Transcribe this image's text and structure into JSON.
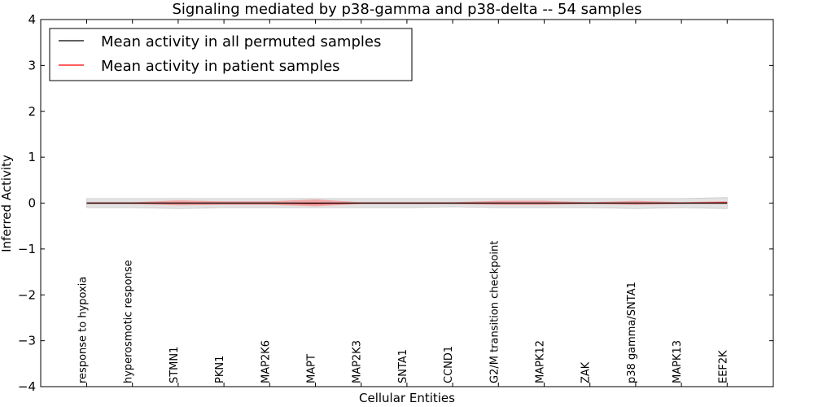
{
  "chart_data": {
    "type": "line",
    "title": "Signaling mediated by p38-gamma and p38-delta -- 54 samples",
    "xlabel": "Cellular Entities",
    "ylabel": "Inferred Activity",
    "ylim": [
      -4,
      4
    ],
    "yticks": [
      -4,
      -3,
      -2,
      -1,
      0,
      1,
      2,
      3,
      4
    ],
    "ytick_labels": [
      "−4",
      "−3",
      "−2",
      "−1",
      "0",
      "1",
      "2",
      "3",
      "4"
    ],
    "categories": [
      "response to hypoxia",
      "hyperosmotic response",
      "STMN1",
      "PKN1",
      "MAP2K6",
      "MAPT",
      "MAP2K3",
      "SNTA1",
      "CCND1",
      "G2/M transition checkpoint",
      "MAPK12",
      "ZAK",
      "p38 gamma/SNTA1",
      "MAPK13",
      "EEF2K"
    ],
    "legend": {
      "placement": "top-left",
      "entries": [
        "Mean activity in all permuted samples",
        "Mean activity in patient samples"
      ]
    },
    "series": [
      {
        "name": "Mean activity in all permuted samples",
        "color": "#000000",
        "values": [
          0.0,
          0.0,
          0.0,
          0.0,
          0.0,
          0.0,
          0.0,
          0.0,
          0.0,
          0.0,
          0.0,
          0.0,
          0.0,
          0.0,
          0.0
        ],
        "band_lower": [
          -0.1,
          -0.1,
          -0.12,
          -0.1,
          -0.1,
          -0.1,
          -0.1,
          -0.1,
          -0.08,
          -0.1,
          -0.1,
          -0.1,
          -0.12,
          -0.1,
          -0.12
        ],
        "band_upper": [
          0.1,
          0.1,
          0.1,
          0.1,
          0.1,
          0.1,
          0.1,
          0.1,
          0.1,
          0.1,
          0.1,
          0.1,
          0.1,
          0.1,
          0.12
        ],
        "band_color": "#d9d9d9"
      },
      {
        "name": "Mean activity in patient samples",
        "color": "#ff0000",
        "values": [
          0.0,
          0.0,
          0.0,
          0.0,
          0.0,
          -0.01,
          0.0,
          0.0,
          0.0,
          0.0,
          0.0,
          0.0,
          0.0,
          0.0,
          0.01
        ],
        "band_lower": [
          -0.02,
          -0.02,
          -0.05,
          -0.04,
          -0.04,
          -0.07,
          -0.02,
          -0.02,
          -0.02,
          -0.04,
          -0.04,
          -0.02,
          -0.04,
          -0.02,
          -0.02
        ],
        "band_upper": [
          0.02,
          0.02,
          0.06,
          0.04,
          0.04,
          0.08,
          0.02,
          0.02,
          0.02,
          0.05,
          0.05,
          0.02,
          0.05,
          0.02,
          0.04
        ],
        "band_color": "#ff7777"
      }
    ]
  }
}
